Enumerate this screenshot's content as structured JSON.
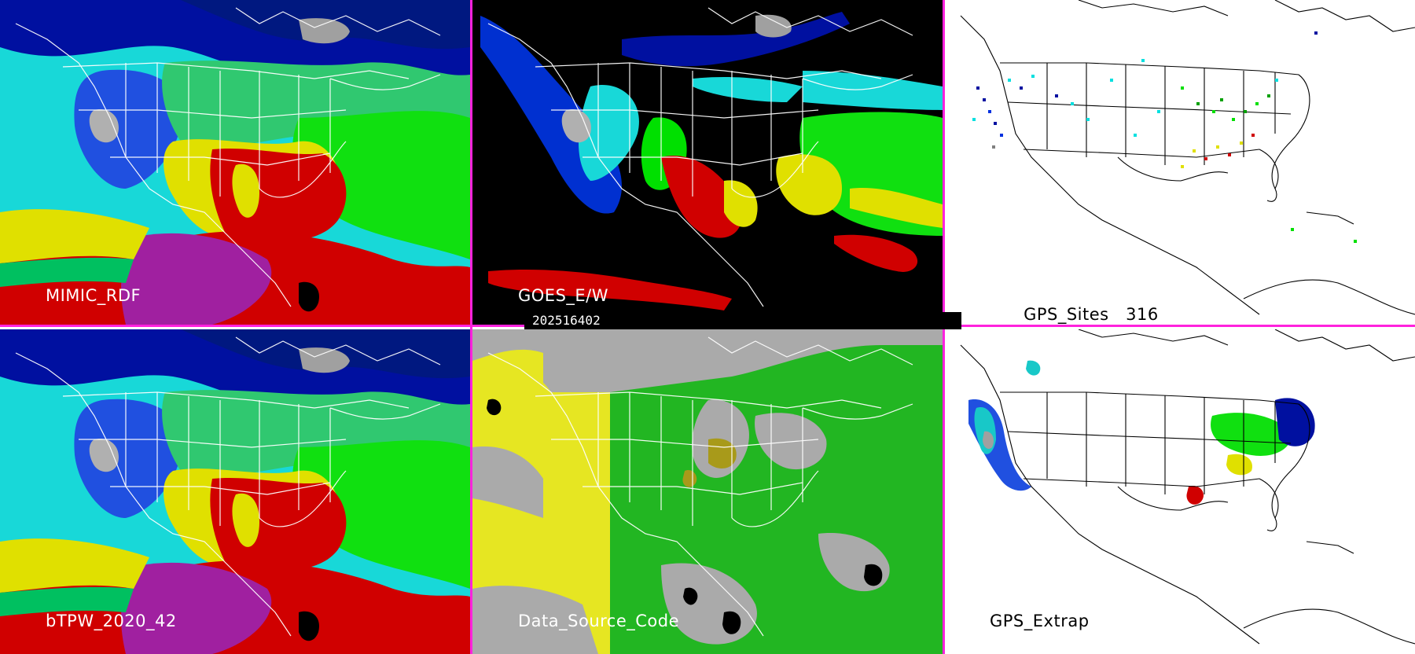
{
  "panels": [
    {
      "id": "mimic",
      "label": "MIMIC_RDF",
      "theme": "light"
    },
    {
      "id": "goes",
      "label": "GOES_E/W",
      "theme": "light"
    },
    {
      "id": "gps_sites",
      "label": "GPS_Sites",
      "count": "316",
      "theme": "dark"
    },
    {
      "id": "btpw",
      "label": "bTPW_2020_42",
      "theme": "light"
    },
    {
      "id": "dsc",
      "label": "Data_Source_Code",
      "theme": "light"
    },
    {
      "id": "gps_extrap",
      "label": "GPS_Extrap",
      "theme": "dark"
    }
  ],
  "timestamp": "202516402",
  "colors": {
    "divider": "#ff22dd",
    "tpw_scale": [
      "#f0f0f0",
      "#a0a0a0",
      "#0010a0",
      "#0030e0",
      "#2080ff",
      "#00e0e0",
      "#00a060",
      "#00e000",
      "#e0e000",
      "#d00000",
      "#a020a0",
      "#000000"
    ],
    "dsc_gray": "#aaaaaa",
    "dsc_yellow": "#e6e622",
    "dsc_green": "#22b622",
    "dsc_olive": "#a89a1a"
  }
}
